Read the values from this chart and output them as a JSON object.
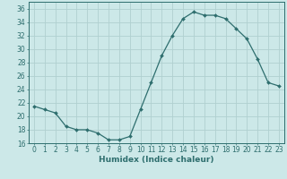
{
  "x": [
    0,
    1,
    2,
    3,
    4,
    5,
    6,
    7,
    8,
    9,
    10,
    11,
    12,
    13,
    14,
    15,
    16,
    17,
    18,
    19,
    20,
    21,
    22,
    23
  ],
  "y": [
    21.5,
    21.0,
    20.5,
    18.5,
    18.0,
    18.0,
    17.5,
    16.5,
    16.5,
    17.0,
    21.0,
    25.0,
    29.0,
    32.0,
    34.5,
    35.5,
    35.0,
    35.0,
    34.5,
    33.0,
    31.5,
    28.5,
    25.0,
    24.5
  ],
  "line_color": "#2e6e6e",
  "marker": "D",
  "markersize": 2.0,
  "linewidth": 0.9,
  "bg_color": "#cce8e8",
  "grid_color": "#b0d0d0",
  "xlabel": "Humidex (Indice chaleur)",
  "ylabel": "",
  "xlim": [
    -0.5,
    23.5
  ],
  "ylim": [
    16,
    37
  ],
  "yticks": [
    16,
    18,
    20,
    22,
    24,
    26,
    28,
    30,
    32,
    34,
    36
  ],
  "xticks": [
    0,
    1,
    2,
    3,
    4,
    5,
    6,
    7,
    8,
    9,
    10,
    11,
    12,
    13,
    14,
    15,
    16,
    17,
    18,
    19,
    20,
    21,
    22,
    23
  ],
  "tick_color": "#2e6e6e",
  "label_fontsize": 6.5,
  "tick_fontsize": 5.5
}
